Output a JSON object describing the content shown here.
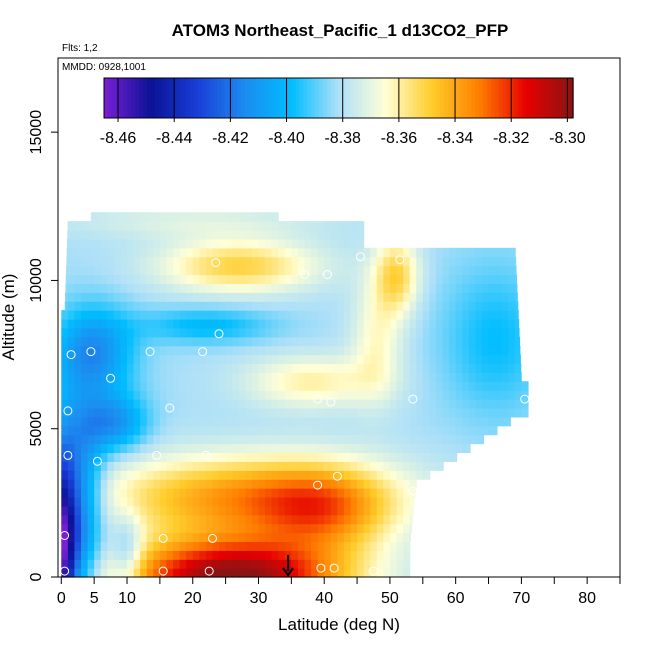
{
  "chart_data": {
    "type": "heatmap",
    "title": "ATOM3 Northeast_Pacific_1 d13CO2_PFP",
    "flights_note": "Flts: 1,2",
    "date_note": "MMDD: 0928,1001",
    "xlabel": "Latitude (deg N)",
    "ylabel": "Altitude (m)",
    "xlim": [
      -0.5,
      85
    ],
    "ylim": [
      0,
      17500
    ],
    "x_ticks": [
      0,
      5,
      10,
      20,
      30,
      40,
      50,
      60,
      70,
      80
    ],
    "x_tick_marks": [
      0,
      5,
      10,
      15,
      20,
      25,
      30,
      35,
      40,
      45,
      50,
      55,
      60,
      65,
      70,
      75,
      80,
      85
    ],
    "y_ticks": [
      0,
      5000,
      10000,
      15000
    ],
    "colorbar": {
      "min": -8.465,
      "max": -8.298,
      "labels": [
        -8.46,
        -8.44,
        -8.42,
        -8.4,
        -8.38,
        -8.36,
        -8.34,
        -8.32,
        -8.3
      ],
      "colors": [
        "#7a1fd6",
        "#0a1296",
        "#1a3ed8",
        "#1c8cf0",
        "#00bdff",
        "#aee0f8",
        "#ffffd6",
        "#ffcc2a",
        "#ff7e00",
        "#e60000",
        "#8a1414"
      ]
    },
    "profile_arrow_latitude": 34.5,
    "sample_points": [
      {
        "lat": 0.5,
        "alt": 200
      },
      {
        "lat": 0.5,
        "alt": 1400
      },
      {
        "lat": 1.0,
        "alt": 5600
      },
      {
        "lat": 1.0,
        "alt": 4100
      },
      {
        "lat": 1.5,
        "alt": 7500
      },
      {
        "lat": 4.5,
        "alt": 7600
      },
      {
        "lat": 5.5,
        "alt": 3900
      },
      {
        "lat": 7.5,
        "alt": 6700
      },
      {
        "lat": 13.5,
        "alt": 7600
      },
      {
        "lat": 14.5,
        "alt": 4100
      },
      {
        "lat": 15.5,
        "alt": 1300
      },
      {
        "lat": 15.5,
        "alt": 200
      },
      {
        "lat": 16.5,
        "alt": 5700
      },
      {
        "lat": 21.5,
        "alt": 7600
      },
      {
        "lat": 22.0,
        "alt": 4100
      },
      {
        "lat": 22.5,
        "alt": 200
      },
      {
        "lat": 23.0,
        "alt": 1300
      },
      {
        "lat": 23.5,
        "alt": 10600
      },
      {
        "lat": 24.0,
        "alt": 8200
      },
      {
        "lat": 37.0,
        "alt": 10200
      },
      {
        "lat": 39.0,
        "alt": 3100
      },
      {
        "lat": 39.0,
        "alt": 6000
      },
      {
        "lat": 39.5,
        "alt": 300
      },
      {
        "lat": 40.5,
        "alt": 10200
      },
      {
        "lat": 41.0,
        "alt": 5900
      },
      {
        "lat": 41.5,
        "alt": 300
      },
      {
        "lat": 42.0,
        "alt": 3400
      },
      {
        "lat": 45.5,
        "alt": 10800
      },
      {
        "lat": 47.5,
        "alt": 200
      },
      {
        "lat": 51.5,
        "alt": 10700
      },
      {
        "lat": 53.5,
        "alt": 2900
      },
      {
        "lat": 53.5,
        "alt": 6000
      },
      {
        "lat": 54.0,
        "alt": 300
      },
      {
        "lat": 70.5,
        "alt": 6000
      }
    ],
    "field": {
      "description": "Interpolated d13CO2 curtain (per mil) versus latitude and altitude",
      "lat_range": [
        0,
        71
      ],
      "alt_range": [
        0,
        12300
      ],
      "approx_values": [
        {
          "lat": 0,
          "alt": 500,
          "value": -8.46
        },
        {
          "lat": 3,
          "alt": 7500,
          "value": -8.41
        },
        {
          "lat": 20,
          "alt": 1000,
          "value": -8.3
        },
        {
          "lat": 35,
          "alt": 2000,
          "value": -8.32
        },
        {
          "lat": 25,
          "alt": 10500,
          "value": -8.355
        },
        {
          "lat": 50,
          "alt": 10300,
          "value": -8.355
        },
        {
          "lat": 40,
          "alt": 6000,
          "value": -8.36
        },
        {
          "lat": 70,
          "alt": 6000,
          "value": -8.39
        }
      ]
    }
  }
}
